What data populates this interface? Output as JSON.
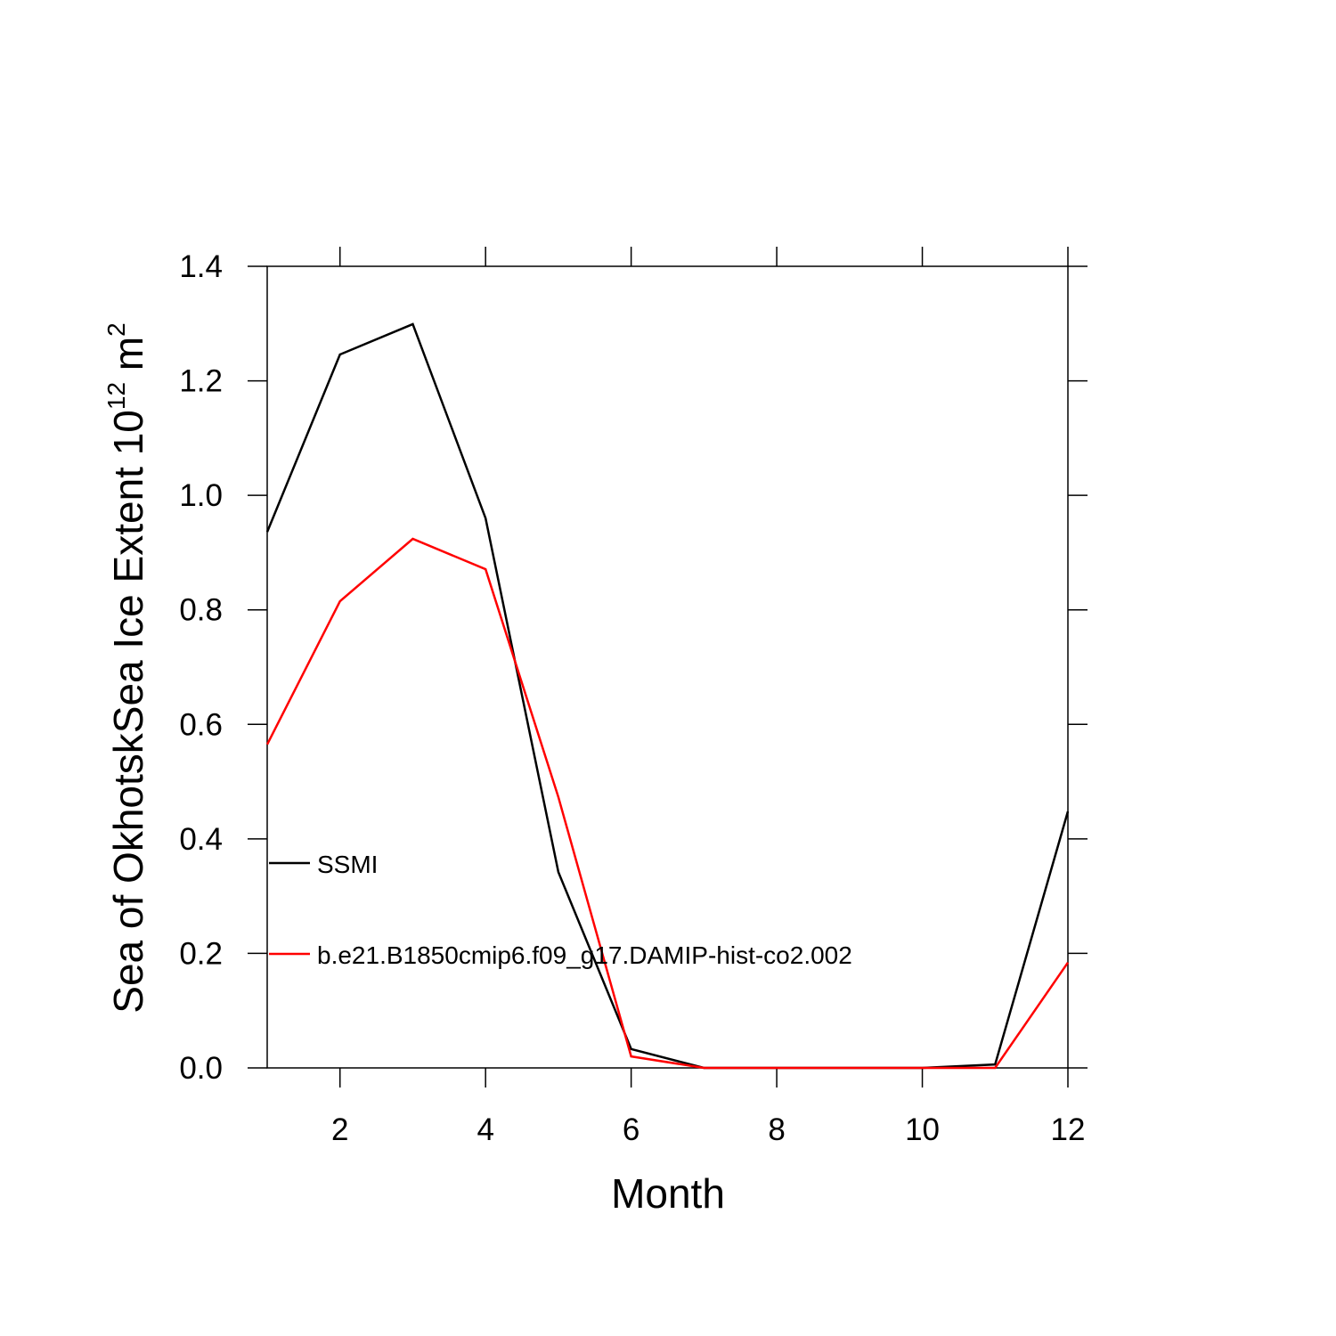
{
  "chart_data": {
    "type": "line",
    "xlabel": "Month",
    "ylabel_parts": [
      {
        "text": "Sea of OkhotskSea Ice Extent 10"
      },
      {
        "text": "12",
        "sup": true
      },
      {
        "text": " m"
      },
      {
        "text": "2",
        "sup": true
      }
    ],
    "x": [
      1,
      2,
      3,
      4,
      5,
      6,
      7,
      8,
      9,
      10,
      11,
      12
    ],
    "series": [
      {
        "name": "SSMI",
        "color": "#000000",
        "values": [
          0.936,
          1.246,
          1.299,
          0.96,
          0.342,
          0.033,
          0,
          0,
          0,
          0,
          0.006,
          0.448
        ]
      },
      {
        "name": "b.e21.B1850cmip6.f09_g17.DAMIP-hist-co2.002",
        "color": "#ff0000",
        "values": [
          0.565,
          0.815,
          0.924,
          0.871,
          0.473,
          0.02,
          0,
          0,
          0,
          0,
          0,
          0.184
        ]
      }
    ],
    "xlim": [
      1,
      12
    ],
    "xticks": [
      2,
      4,
      6,
      8,
      10,
      12
    ],
    "ylim": [
      0,
      1.4
    ],
    "yticks": [
      {
        "value": 0,
        "label": "0.0"
      },
      {
        "value": 0.2,
        "label": "0.2"
      },
      {
        "value": 0.4,
        "label": "0.4"
      },
      {
        "value": 0.6,
        "label": "0.6"
      },
      {
        "value": 0.8,
        "label": "0.8"
      },
      {
        "value": 1,
        "label": "1.0"
      },
      {
        "value": 1.2,
        "label": "1.2"
      },
      {
        "value": 1.4,
        "label": "1.4"
      }
    ]
  }
}
